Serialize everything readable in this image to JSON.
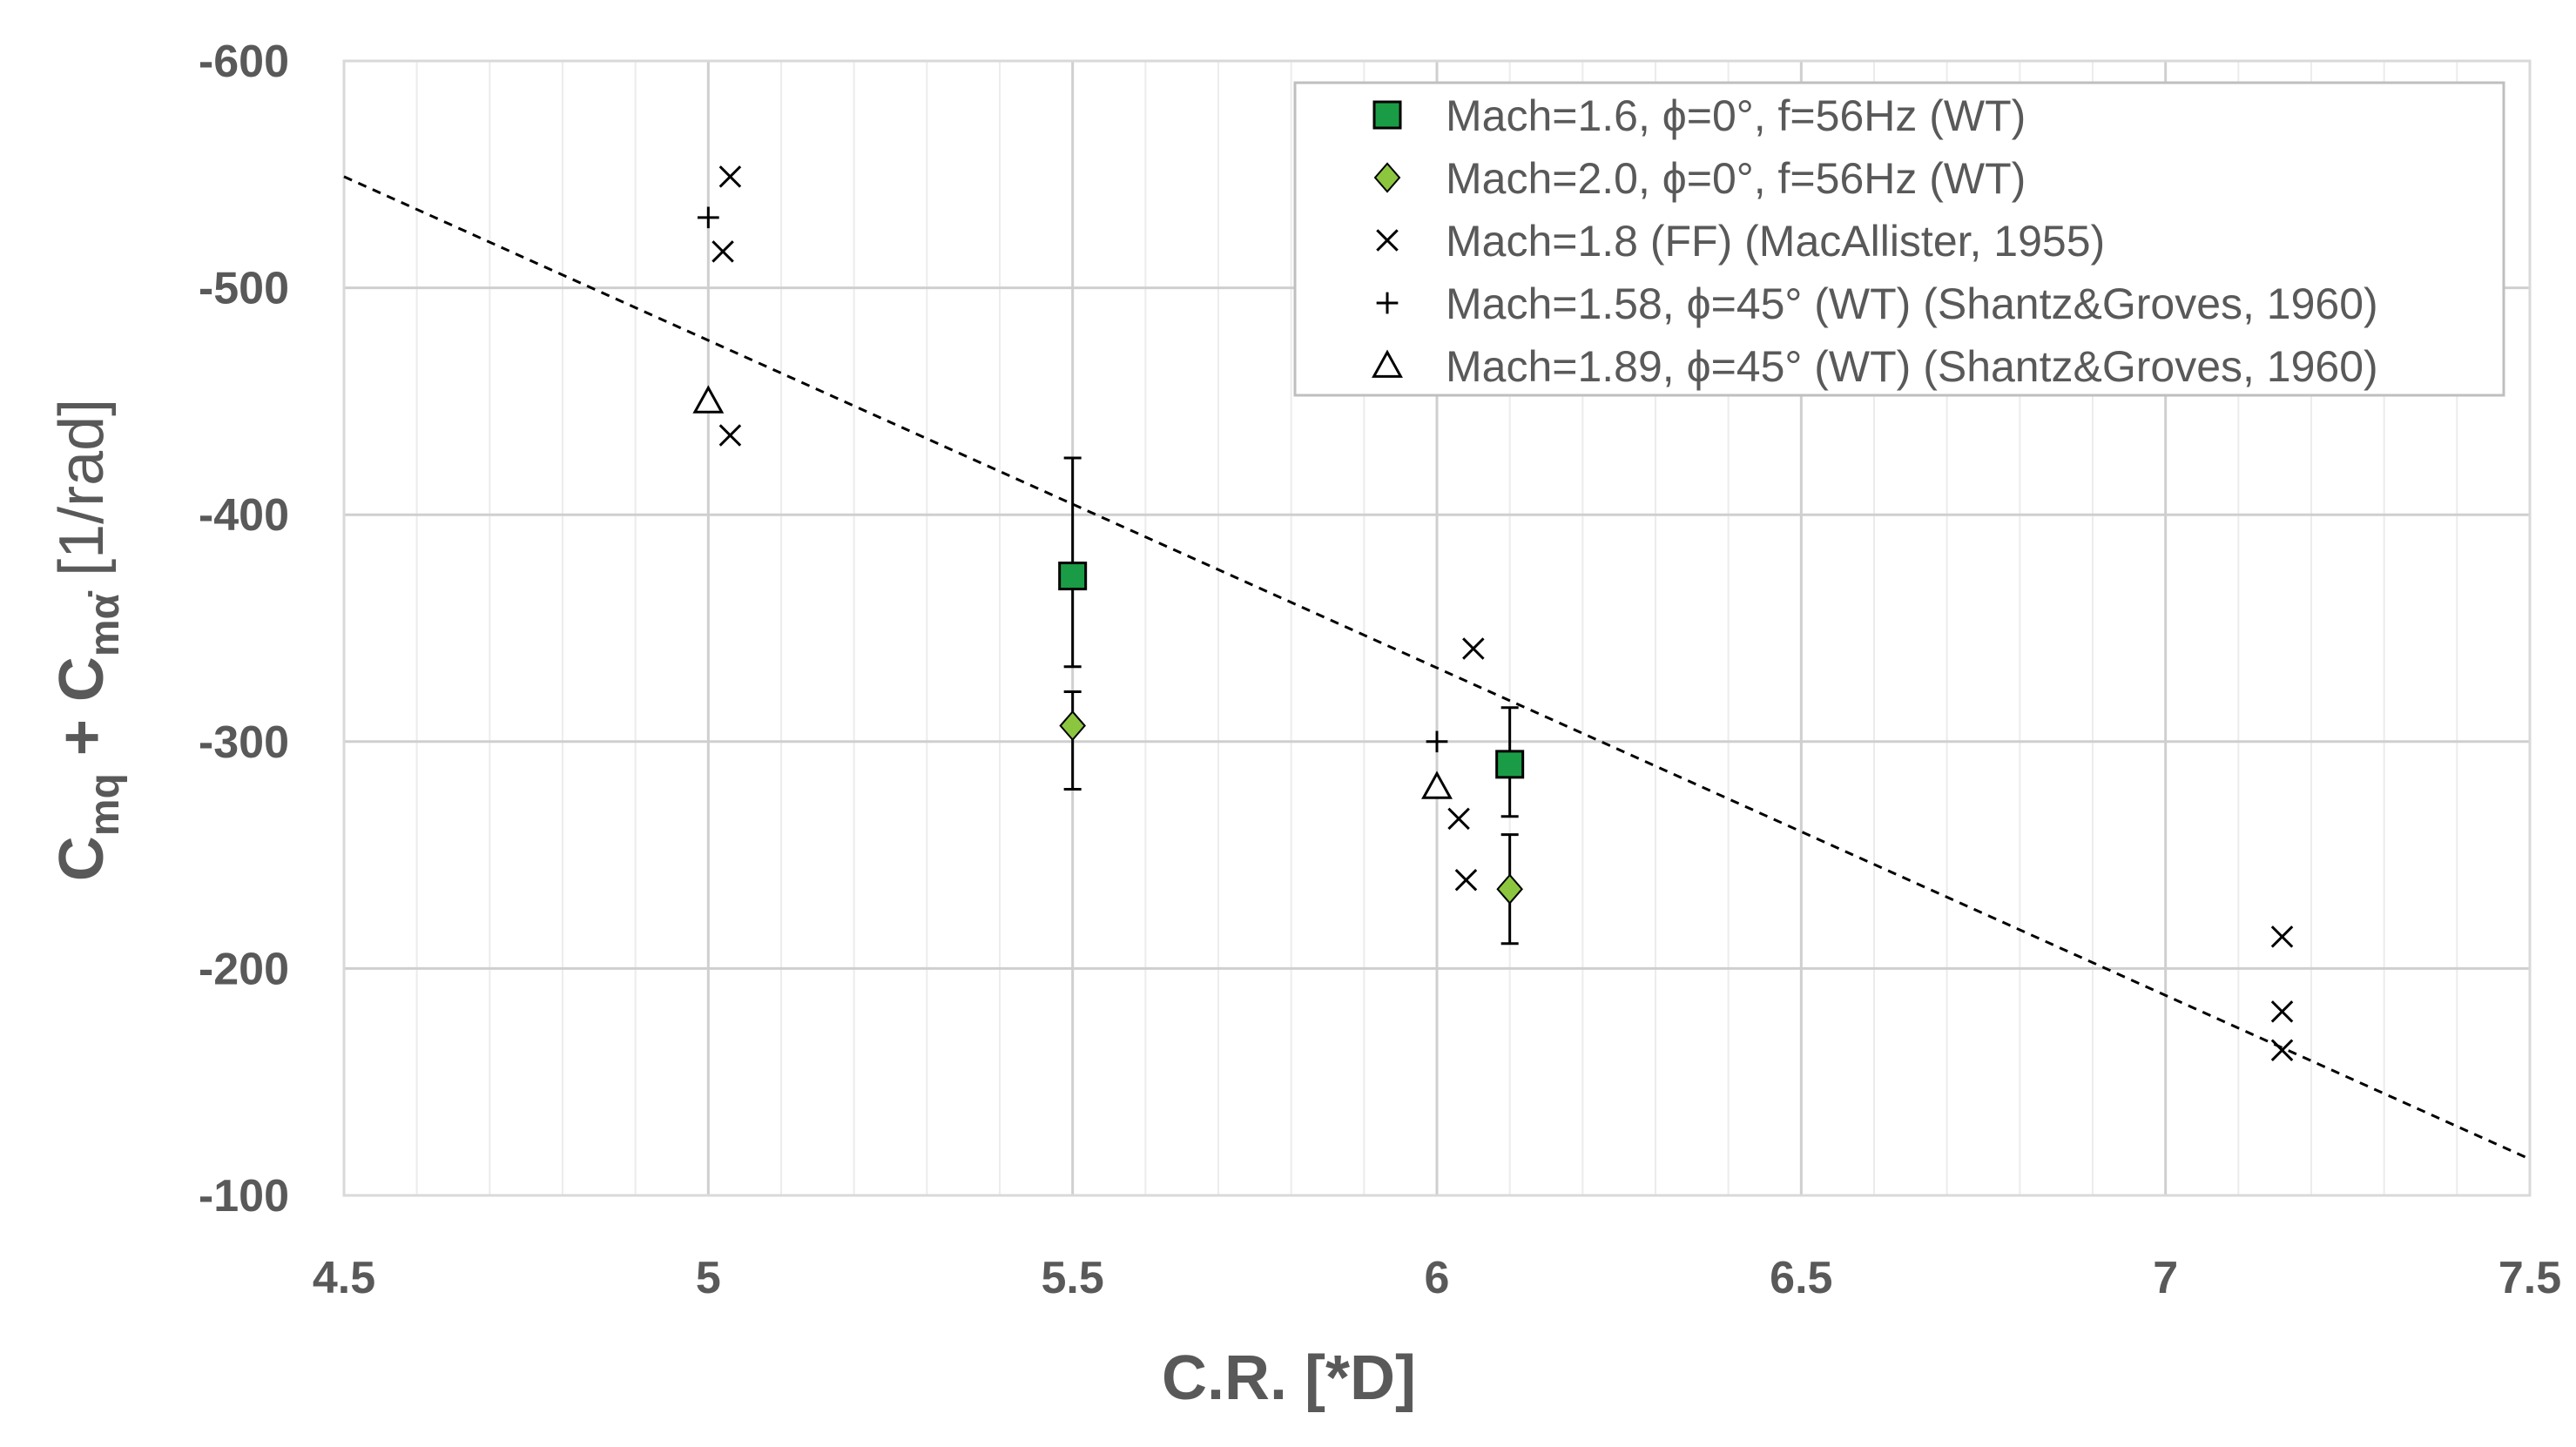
{
  "chart_data": {
    "type": "scatter",
    "xlabel": "C.R. [*D]",
    "ylabel": {
      "prefix": "C",
      "sub1": "mq",
      "middle": " + C",
      "sub2": "mα̇",
      "suffix": " [1/rad]"
    },
    "xlim": [
      4.5,
      7.5
    ],
    "ylim": [
      -100,
      -600
    ],
    "xticks": [
      4.5,
      5,
      5.5,
      6,
      6.5,
      7,
      7.5
    ],
    "xtick_labels": [
      "4.5",
      "5",
      "5.5",
      "6",
      "6.5",
      "7",
      "7.5"
    ],
    "yticks": [
      -600,
      -500,
      -400,
      -300,
      -200,
      -100
    ],
    "ytick_labels": [
      "-600",
      "-500",
      "-400",
      "-300",
      "-200",
      "-100"
    ],
    "minor_x_step": 0.1,
    "minor_y_step": 20,
    "legend_position": "top-right",
    "series": [
      {
        "name": "Mach=1.6, ϕ=0°, f=56Hz (WT)",
        "marker": "square",
        "color": "#1a9c46",
        "points": [
          {
            "x": 5.5,
            "y": -373,
            "err_low": -333,
            "err_high": -425
          },
          {
            "x": 6.1,
            "y": -290,
            "err_low": -267,
            "err_high": -315
          }
        ]
      },
      {
        "name": "Mach=2.0, ϕ=0°, f=56Hz (WT)",
        "marker": "diamond",
        "color": "#8cc63f",
        "points": [
          {
            "x": 5.5,
            "y": -307,
            "err_low": -279,
            "err_high": -322
          },
          {
            "x": 6.1,
            "y": -235,
            "err_low": -211,
            "err_high": -259
          }
        ]
      },
      {
        "name": "Mach=1.8 (FF) (MacAllister, 1955)",
        "marker": "x",
        "color": "#000000",
        "points": [
          {
            "x": 5.03,
            "y": -549
          },
          {
            "x": 5.02,
            "y": -516
          },
          {
            "x": 5.03,
            "y": -435
          },
          {
            "x": 6.05,
            "y": -341
          },
          {
            "x": 6.03,
            "y": -266
          },
          {
            "x": 6.04,
            "y": -239
          },
          {
            "x": 7.16,
            "y": -214
          },
          {
            "x": 7.16,
            "y": -181
          },
          {
            "x": 7.16,
            "y": -164
          }
        ]
      },
      {
        "name": "Mach=1.58, ϕ=45° (WT) (Shantz&Groves, 1960)",
        "marker": "plus",
        "color": "#000000",
        "points": [
          {
            "x": 5.0,
            "y": -531
          },
          {
            "x": 6.0,
            "y": -300
          }
        ]
      },
      {
        "name": "Mach=1.89, ϕ=45° (WT) (Shantz&Groves, 1960)",
        "marker": "triangle",
        "color": "#000000",
        "points": [
          {
            "x": 5.0,
            "y": -450
          },
          {
            "x": 6.0,
            "y": -280
          }
        ]
      }
    ],
    "trendline": {
      "style": "dashed",
      "color": "#000000",
      "points": [
        [
          4.5,
          -549
        ],
        [
          7.5,
          -116
        ]
      ]
    }
  }
}
